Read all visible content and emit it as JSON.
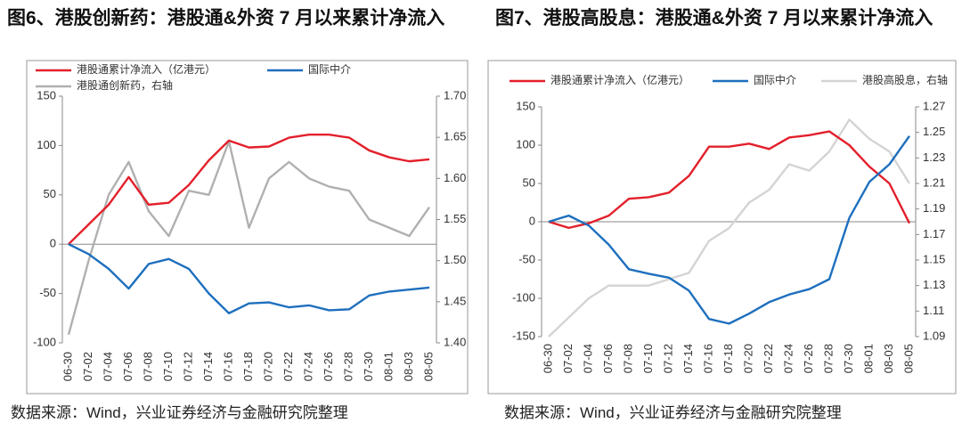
{
  "chart_data": [
    {
      "type": "line",
      "title": "图6、港股创新药：港股通&外资 7 月以来累计净流入",
      "source": "数据来源：Wind，兴业证券经济与金融研究院整理",
      "categories": [
        "06-30",
        "07-02",
        "07-04",
        "07-06",
        "07-08",
        "07-10",
        "07-12",
        "07-14",
        "07-16",
        "07-18",
        "07-20",
        "07-22",
        "07-24",
        "07-26",
        "07-28",
        "07-30",
        "08-01",
        "08-03",
        "08-05"
      ],
      "ylim": [
        -100,
        150
      ],
      "yticks": [
        -100,
        -50,
        0,
        50,
        100,
        150
      ],
      "y2lim": [
        1.4,
        1.7
      ],
      "y2ticks": [
        {
          "value": 1.4,
          "label": "1.40"
        },
        1.45,
        {
          "value": 1.5,
          "label": "1.50"
        },
        1.55,
        {
          "value": 1.6,
          "label": "1.60"
        },
        1.65,
        {
          "value": 1.7,
          "label": "1.70"
        }
      ],
      "series": [
        {
          "name": "港股通累计净流入（亿港元）",
          "color": "#e3202b",
          "values": [
            0,
            20,
            40,
            68,
            40,
            42,
            60,
            85,
            105,
            98,
            99,
            108,
            111,
            111,
            108,
            95,
            88,
            84,
            86
          ]
        },
        {
          "name": "国际中介",
          "color": "#1e6fbe",
          "values": [
            0,
            -10,
            -25,
            -45,
            -20,
            -15,
            -25,
            -50,
            -70,
            -60,
            -59,
            -64,
            -62,
            -67,
            -66,
            -52,
            -48,
            -46,
            -44
          ]
        },
        {
          "name": "港股通创新药，右轴",
          "color": "#b0b0b0",
          "axis": "y2",
          "values": [
            1.41,
            1.5,
            1.58,
            1.62,
            1.56,
            1.53,
            1.585,
            1.58,
            1.645,
            1.54,
            1.6,
            1.62,
            1.6,
            1.59,
            1.585,
            1.55,
            1.54,
            1.53,
            1.565
          ]
        }
      ]
    },
    {
      "type": "line",
      "title": "图7、港股高股息：港股通&外资 7 月以来累计净流入",
      "source": "数据来源：Wind，兴业证券经济与金融研究院整理",
      "categories": [
        "06-30",
        "07-02",
        "07-04",
        "07-06",
        "07-08",
        "07-10",
        "07-12",
        "07-14",
        "07-16",
        "07-18",
        "07-20",
        "07-22",
        "07-24",
        "07-26",
        "07-28",
        "07-30",
        "08-01",
        "08-03",
        "08-05"
      ],
      "ylim": [
        -150,
        150
      ],
      "yticks": [
        -150,
        -100,
        -50,
        0,
        50,
        100,
        150
      ],
      "y2lim": [
        1.09,
        1.27
      ],
      "y2ticks": [
        1.09,
        1.11,
        1.13,
        1.15,
        1.17,
        1.19,
        1.21,
        1.23,
        1.25,
        1.27
      ],
      "series": [
        {
          "name": "港股通累计净流入（亿港元）",
          "color": "#e3202b",
          "values": [
            0,
            -8,
            -2,
            8,
            30,
            32,
            38,
            60,
            98,
            98,
            102,
            95,
            110,
            113,
            118,
            100,
            72,
            50,
            -2
          ]
        },
        {
          "name": "国际中介",
          "color": "#1e6fbe",
          "values": [
            0,
            8,
            -5,
            -30,
            -62,
            -68,
            -73,
            -90,
            -127,
            -133,
            -120,
            -105,
            -95,
            -88,
            -75,
            5,
            52,
            75,
            112
          ]
        },
        {
          "name": "港股高股息，右轴",
          "color": "#d4d4d4",
          "axis": "y2",
          "values": [
            1.09,
            1.105,
            1.12,
            1.13,
            1.13,
            1.13,
            1.135,
            1.14,
            1.165,
            1.175,
            1.195,
            1.205,
            1.225,
            1.22,
            1.235,
            1.26,
            1.245,
            1.235,
            1.21
          ]
        }
      ]
    }
  ]
}
